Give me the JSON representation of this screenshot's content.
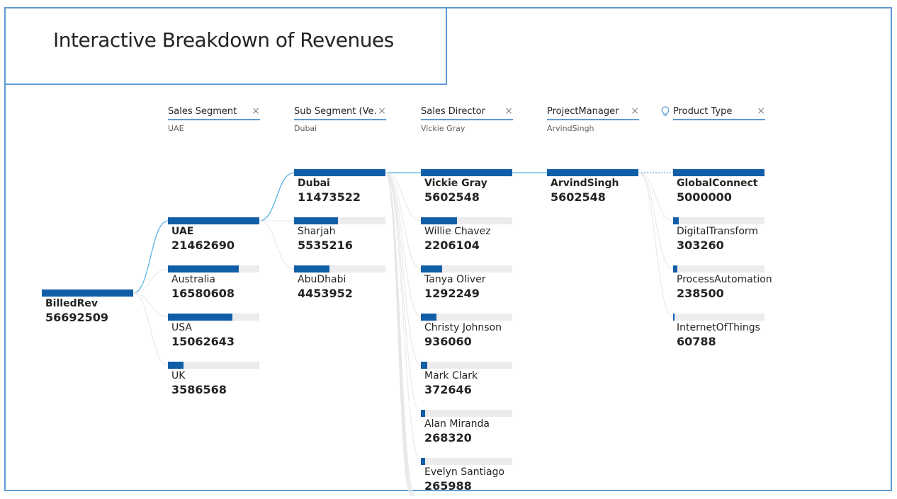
{
  "title": "Interactive Breakdown of Revenues",
  "colors": {
    "frame": "#5b9bd5",
    "bar": "#115ea8",
    "bar_bg": "#ececec",
    "link": "#5bb1e6"
  },
  "levels": [
    {
      "label": "Sales Segment",
      "selected": "UAE",
      "has_bulb": false
    },
    {
      "label": "Sub Segment (Ve...",
      "selected": "Dubai",
      "has_bulb": false
    },
    {
      "label": "Sales Director",
      "selected": "Vickie Gray",
      "has_bulb": false
    },
    {
      "label": "ProjectManager",
      "selected": "ArvindSingh",
      "has_bulb": false
    },
    {
      "label": "Product Type",
      "selected": "",
      "has_bulb": true
    }
  ],
  "close_glyph": "×",
  "root": {
    "name": "BilledRev",
    "value": 56692509
  },
  "columns": [
    [
      {
        "name": "UAE",
        "value": 21462690,
        "selected": true
      },
      {
        "name": "Australia",
        "value": 16580608
      },
      {
        "name": "USA",
        "value": 15062643
      },
      {
        "name": "UK",
        "value": 3586568
      }
    ],
    [
      {
        "name": "Dubai",
        "value": 11473522,
        "selected": true
      },
      {
        "name": "Sharjah",
        "value": 5535216
      },
      {
        "name": "AbuDhabi",
        "value": 4453952
      }
    ],
    [
      {
        "name": "Vickie Gray",
        "value": 5602548,
        "selected": true
      },
      {
        "name": "Willie Chavez",
        "value": 2206104
      },
      {
        "name": "Tanya Oliver",
        "value": 1292249
      },
      {
        "name": "Christy Johnson",
        "value": 936060
      },
      {
        "name": "Mark Clark",
        "value": 372646
      },
      {
        "name": "Alan Miranda",
        "value": 268320
      },
      {
        "name": "Evelyn Santiago",
        "value": 265988
      }
    ],
    [
      {
        "name": "ArvindSingh",
        "value": 5602548,
        "selected": true
      }
    ],
    [
      {
        "name": "GlobalConnect",
        "value": 5000000,
        "selected": true
      },
      {
        "name": "DigitalTransform",
        "value": 303260
      },
      {
        "name": "ProcessAutomation",
        "value": 238500
      },
      {
        "name": "InternetOfThings",
        "value": 60788
      }
    ]
  ]
}
